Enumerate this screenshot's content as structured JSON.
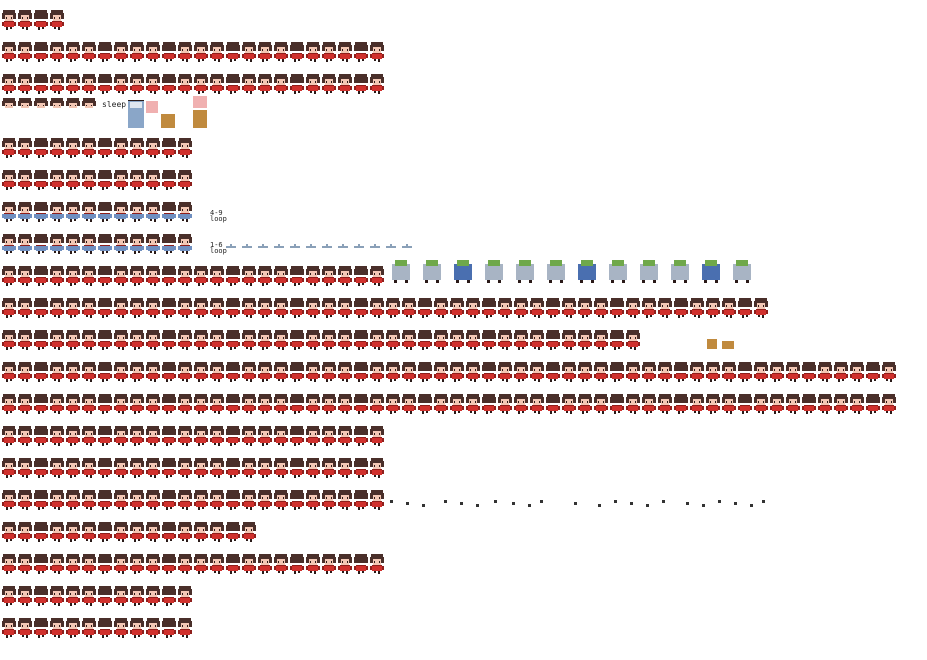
{
  "sheet": {
    "colors": {
      "hair": "#4a2f2a",
      "skin": "#f3c7b4",
      "shirt": "#d0312d",
      "shirt_dark": "#8f1f1c",
      "outline": "#2a1a18",
      "pajama": "#6f8fc0",
      "bed": "#8aa6c8",
      "box": "#c08a3e",
      "green": "#6fa84a",
      "blue_chair": "#4a6fb0",
      "pink": "#f0b0b0"
    },
    "rows": [
      {
        "count": 4,
        "kind": "walk"
      },
      {
        "count": 24,
        "kind": "walk"
      },
      {
        "count": 24,
        "kind": "walk"
      },
      {
        "count": 6,
        "kind": "face"
      },
      {
        "count": 12,
        "kind": "walk"
      },
      {
        "count": 12,
        "kind": "walk"
      },
      {
        "count": 12,
        "kind": "pajama"
      },
      {
        "count": 12,
        "kind": "pajama"
      },
      {
        "count": 24,
        "kind": "walk"
      },
      {
        "count": 48,
        "kind": "walk"
      },
      {
        "count": 40,
        "kind": "walk"
      },
      {
        "count": 56,
        "kind": "walk"
      },
      {
        "count": 56,
        "kind": "walk"
      },
      {
        "count": 24,
        "kind": "walk"
      },
      {
        "count": 24,
        "kind": "walk"
      },
      {
        "count": 24,
        "kind": "walk"
      },
      {
        "count": 16,
        "kind": "walk"
      },
      {
        "count": 24,
        "kind": "walk"
      },
      {
        "count": 12,
        "kind": "walk"
      },
      {
        "count": 12,
        "kind": "walk"
      }
    ]
  },
  "labels": {
    "sleep": "sleep",
    "loop_a_range": "4-9",
    "loop_a_word": "loop",
    "loop_b_range": "1-6",
    "loop_b_word": "loop"
  }
}
